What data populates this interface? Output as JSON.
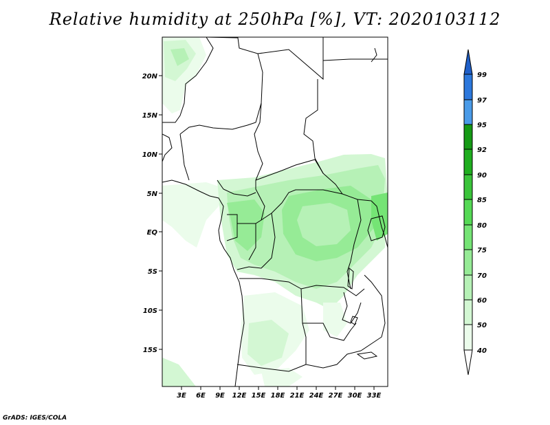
{
  "title": "Relative humidity at 250hPa [%], VT: 2020103112",
  "footer": "GrADS: IGES/COLA",
  "map": {
    "lat_labels": [
      "20N",
      "15N",
      "10N",
      "5N",
      "EQ",
      "5S",
      "10S",
      "15S"
    ],
    "lon_labels": [
      "3E",
      "6E",
      "9E",
      "12E",
      "15E",
      "18E",
      "21E",
      "24E",
      "27E",
      "30E",
      "33E"
    ]
  },
  "colorbar": {
    "levels": [
      "99",
      "97",
      "95",
      "92",
      "90",
      "85",
      "80",
      "75",
      "70",
      "60",
      "50",
      "40"
    ],
    "colors": {
      "top_arrow": "#1f5fc8",
      "97_99": "#2c78dc",
      "95_97": "#4a9be8",
      "92_95": "#159a15",
      "90_92": "#1fae1f",
      "85_90": "#3ac43a",
      "80_85": "#55d955",
      "75_80": "#75e475",
      "70_75": "#96eb96",
      "60_70": "#b6f1b6",
      "50_60": "#d3f7d3",
      "40_50": "#ebfceb",
      "bottom_arrow": "#ffffff"
    }
  }
}
